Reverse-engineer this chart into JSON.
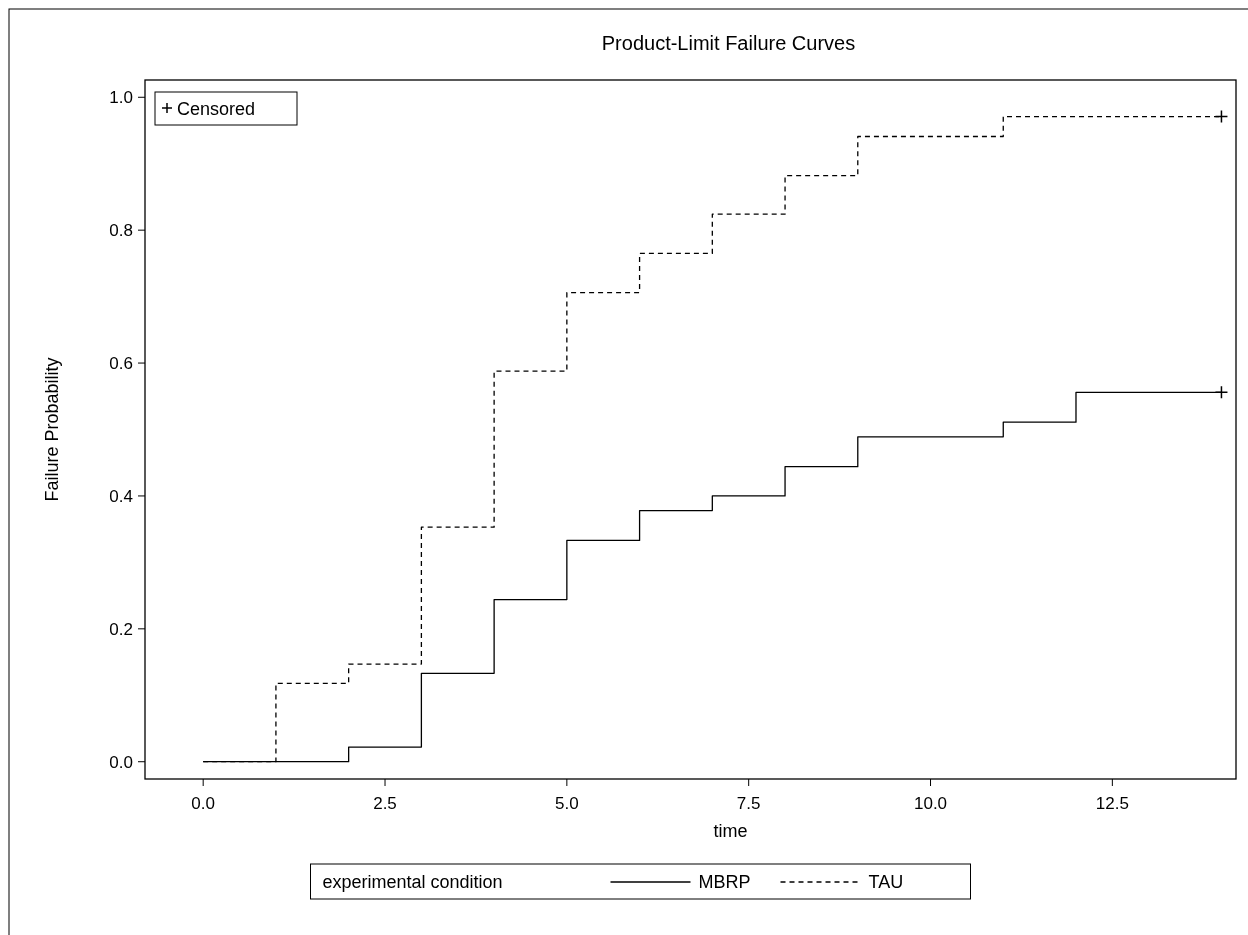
{
  "chart_data": {
    "type": "step",
    "title": "Product-Limit Failure Curves",
    "xlabel": "time",
    "ylabel": "Failure Probability",
    "legend_title": "experimental condition",
    "xlim": [
      -0.8,
      14.2
    ],
    "ylim": [
      -0.026,
      1.026
    ],
    "xticks": [
      {
        "value": 0,
        "label": "0.0"
      },
      {
        "value": 2.5,
        "label": "2.5"
      },
      {
        "value": 5,
        "label": "5.0"
      },
      {
        "value": 7.5,
        "label": "7.5"
      },
      {
        "value": 10,
        "label": "10.0"
      },
      {
        "value": 12.5,
        "label": "12.5"
      }
    ],
    "yticks": [
      {
        "value": 0,
        "label": "0.0"
      },
      {
        "value": 0.2,
        "label": "0.2"
      },
      {
        "value": 0.4,
        "label": "0.4"
      },
      {
        "value": 0.6,
        "label": "0.6"
      },
      {
        "value": 0.8,
        "label": "0.8"
      },
      {
        "value": 1,
        "label": "1.0"
      }
    ],
    "grid": false,
    "legend": "bottom",
    "series": [
      {
        "name": "MBRP",
        "color": "#000000",
        "line_style": "solid",
        "x": [
          0,
          2,
          3,
          4,
          5,
          6,
          7,
          8,
          9,
          11,
          12,
          14
        ],
        "values": [
          0,
          0.022,
          0.133,
          0.244,
          0.333,
          0.378,
          0.4,
          0.444,
          0.489,
          0.511,
          0.556,
          0.556
        ]
      },
      {
        "name": "TAU",
        "color": "#000000",
        "line_style": "dashed",
        "x": [
          0,
          1,
          2,
          3,
          4,
          5,
          6,
          7,
          8,
          9,
          11,
          14
        ],
        "values": [
          0,
          0.118,
          0.147,
          0.353,
          0.588,
          0.706,
          0.765,
          0.824,
          0.882,
          0.941,
          0.971,
          0.971
        ]
      },
      {
        "name": "Censored",
        "type": "scatter",
        "marker": "cross",
        "color": "#000000",
        "x": [
          14,
          14
        ],
        "values": [
          0.556,
          0.971
        ]
      }
    ]
  }
}
